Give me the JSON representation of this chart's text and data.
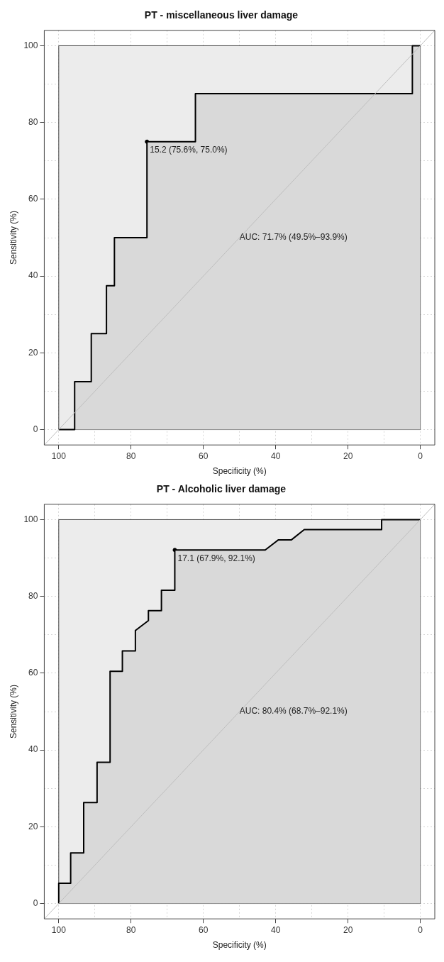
{
  "chart_data": [
    {
      "type": "line",
      "title": "PT - miscellaneous liver damage",
      "xlabel": "Specificity (%)",
      "ylabel": "Sensitivity (%)",
      "xlim": [
        104,
        -4
      ],
      "ylim": [
        -4,
        104
      ],
      "xticks": [
        0,
        {
          "value": 10,
          "label": null
        },
        20,
        {
          "value": 30,
          "label": null
        },
        40,
        {
          "value": 50,
          "label": null
        },
        60,
        {
          "value": 70,
          "label": null
        },
        80,
        {
          "value": 90,
          "label": null
        },
        100
      ],
      "yticks": [
        0,
        {
          "value": 10,
          "label": null
        },
        20,
        {
          "value": 30,
          "label": null
        },
        40,
        {
          "value": 50,
          "label": null
        },
        60,
        {
          "value": 70,
          "label": null
        },
        80,
        {
          "value": 90,
          "label": null
        },
        100
      ],
      "grid": true,
      "series": [
        {
          "type": "line",
          "color": "#bebebe",
          "x": [
            104,
            -4
          ],
          "values": [
            -4,
            104
          ]
        },
        {
          "type": "area",
          "color": "#000000",
          "x": [
            100,
            95.6,
            95.6,
            91,
            91,
            86.8,
            86.8,
            84.6,
            84.6,
            75.6,
            75.6,
            62.2,
            62.2,
            2.2,
            2.2,
            0
          ],
          "values": [
            0,
            0,
            12.5,
            12.5,
            25,
            25,
            37.5,
            37.5,
            50,
            50,
            75,
            75,
            87.5,
            87.5,
            100,
            100
          ]
        },
        {
          "type": "scatter",
          "color": "#000000",
          "marker": "circle",
          "x": [
            75.6
          ],
          "values": [
            75
          ]
        }
      ],
      "annotations": [
        {
          "text": "15.2 (75.6%, 75.0%)",
          "x": 75.6,
          "y": 75
        },
        "AUC: 71.7% (49.5%–93.9%)"
      ]
    },
    {
      "type": "line",
      "title": "PT - Alcoholic liver damage",
      "xlabel": "Specificity (%)",
      "ylabel": "Sensitivity (%)",
      "xlim": [
        104,
        -4
      ],
      "ylim": [
        -4,
        104
      ],
      "xticks": [
        0,
        {
          "value": 10,
          "label": null
        },
        20,
        {
          "value": 30,
          "label": null
        },
        40,
        {
          "value": 50,
          "label": null
        },
        60,
        {
          "value": 70,
          "label": null
        },
        80,
        {
          "value": 90,
          "label": null
        },
        100
      ],
      "yticks": [
        0,
        {
          "value": 10,
          "label": null
        },
        20,
        {
          "value": 30,
          "label": null
        },
        40,
        {
          "value": 50,
          "label": null
        },
        60,
        {
          "value": 70,
          "label": null
        },
        80,
        {
          "value": 90,
          "label": null
        },
        100
      ],
      "grid": true,
      "series": [
        {
          "type": "line",
          "color": "#bebebe",
          "x": [
            104,
            -4
          ],
          "values": [
            -4,
            104
          ]
        },
        {
          "type": "area",
          "color": "#000000",
          "x": [
            100,
            100,
            96.7,
            96.7,
            93.1,
            93.1,
            89.4,
            89.4,
            85.8,
            85.8,
            82.4,
            82.4,
            78.8,
            78.8,
            75.2,
            75.2,
            71.6,
            71.6,
            67.9,
            67.9,
            42.9,
            39.3,
            35.7,
            32.1,
            10.7,
            10.7,
            0
          ],
          "values": [
            0,
            5.3,
            5.3,
            13.2,
            13.2,
            26.3,
            26.3,
            36.8,
            36.8,
            60.5,
            60.5,
            65.8,
            65.8,
            71.1,
            73.7,
            76.3,
            76.3,
            81.6,
            81.6,
            92.1,
            92.1,
            94.7,
            94.7,
            97.4,
            97.4,
            100,
            100
          ]
        },
        {
          "type": "scatter",
          "color": "#000000",
          "marker": "circle",
          "x": [
            67.9
          ],
          "values": [
            92.1
          ]
        }
      ],
      "annotations": [
        {
          "text": "17.1 (67.9%, 92.1%)",
          "x": 67.9,
          "y": 92.1
        },
        "AUC: 80.4% (68.7%–92.1%)"
      ]
    }
  ]
}
